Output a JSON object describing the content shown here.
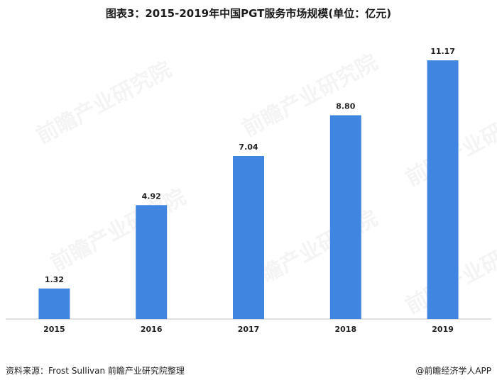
{
  "header": {
    "title": "图表3：2015-2019年中国PGT服务市场规模(单位：亿元)"
  },
  "chart_data": {
    "type": "bar",
    "title": "图表3：2015-2019年中国PGT服务市场规模(单位：亿元)",
    "categories": [
      "2015",
      "2016",
      "2017",
      "2018",
      "2019"
    ],
    "values": [
      1.32,
      4.92,
      7.04,
      8.8,
      11.17
    ],
    "value_labels": [
      "1.32",
      "4.92",
      "7.04",
      "8.80",
      "11.17"
    ],
    "ylim": [
      0,
      12
    ],
    "grid": false,
    "bar_color": "#4085E0"
  },
  "footer": {
    "source": "资料来源：Frost Sullivan  前瞻产业研究院整理",
    "credit": "@前瞻经济学人APP"
  },
  "watermark": {
    "text": "前瞻产业研究院"
  }
}
